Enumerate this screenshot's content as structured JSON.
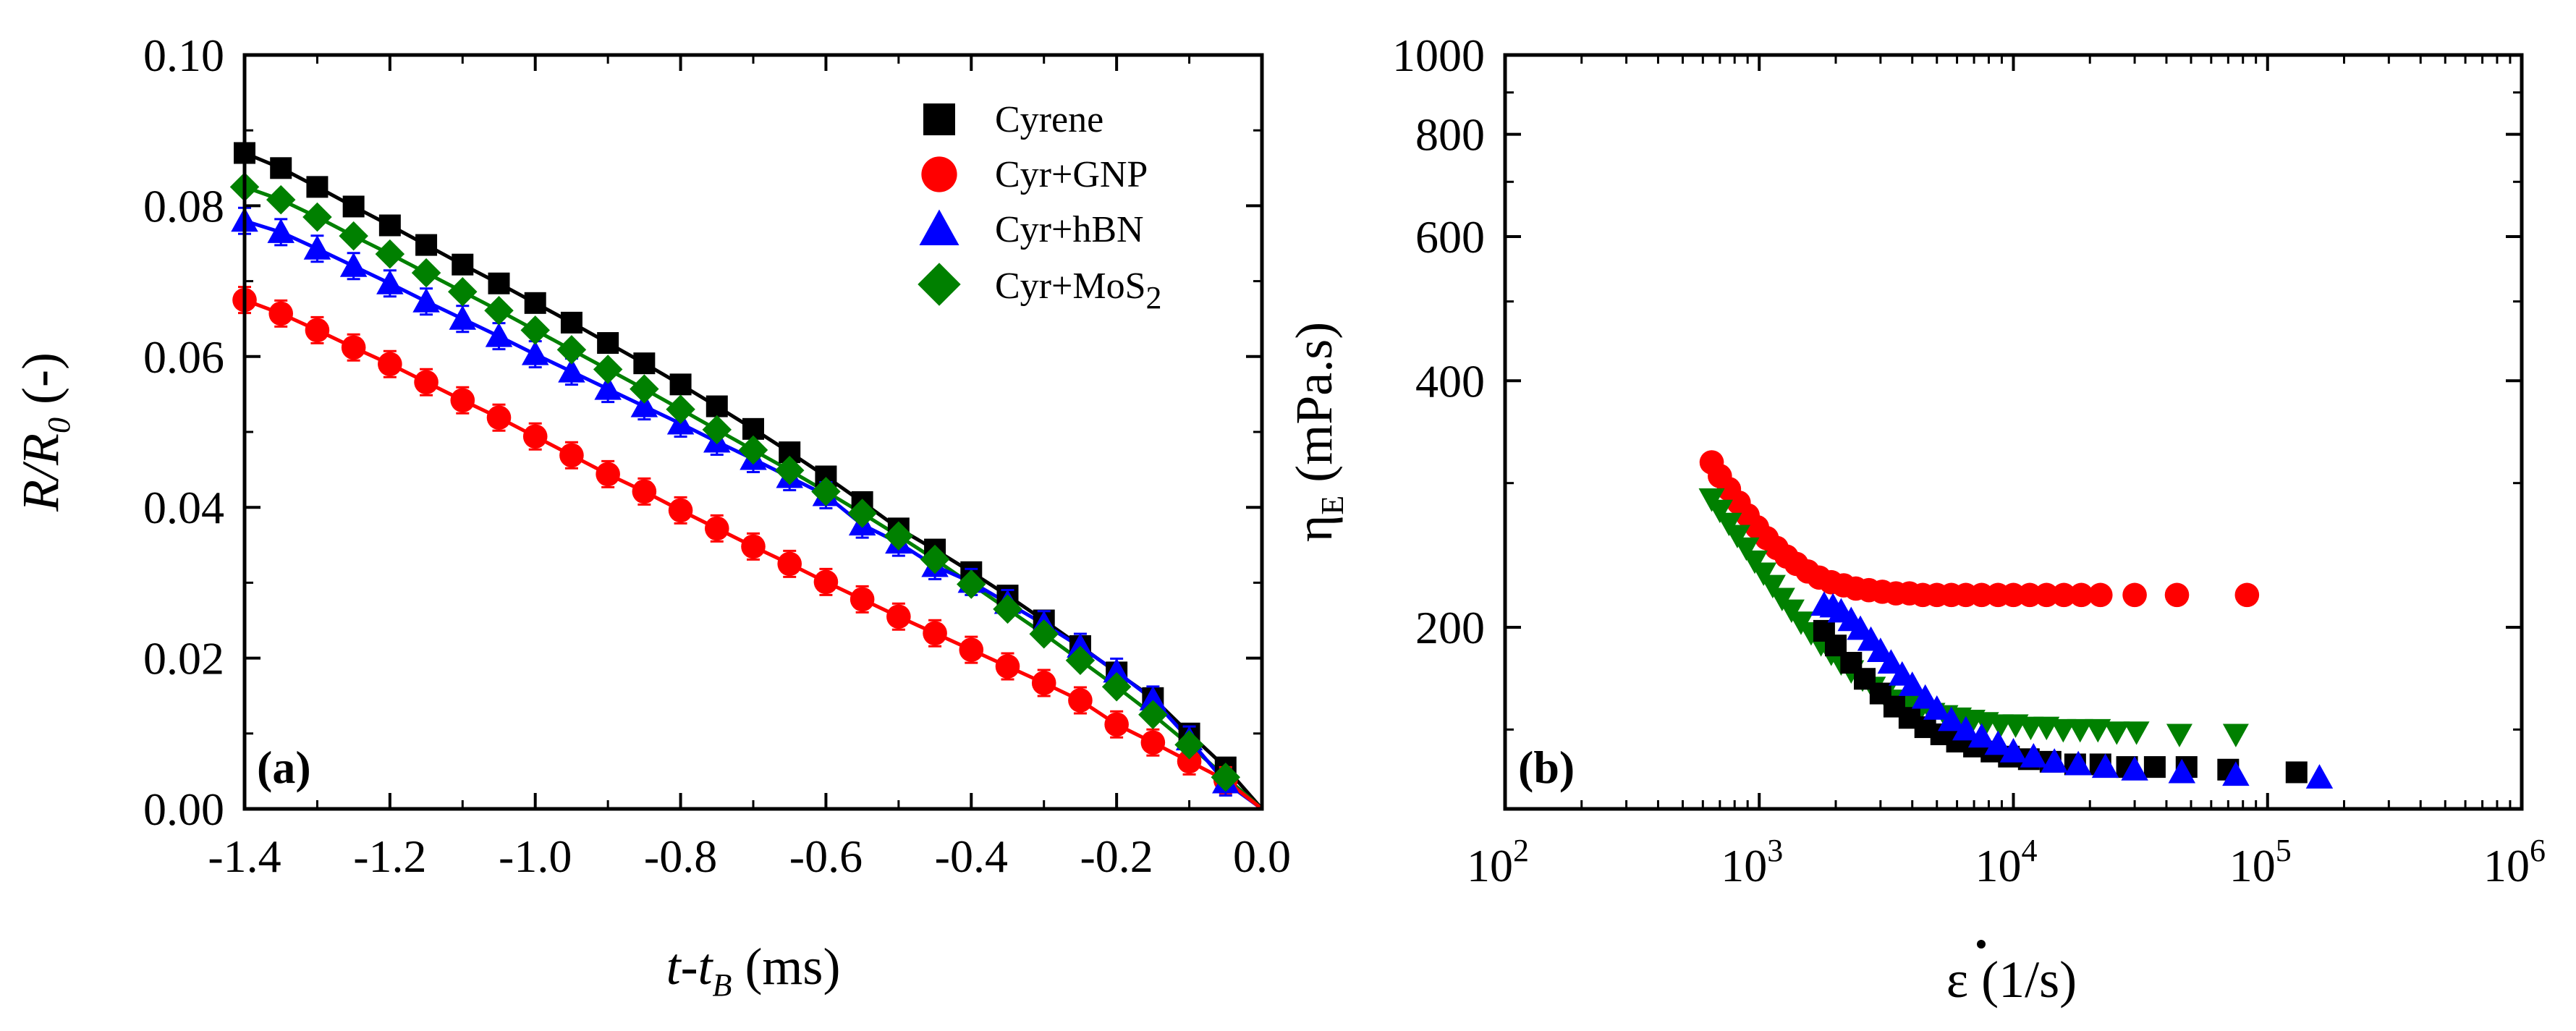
{
  "chart_data": [
    {
      "type": "scatter",
      "panel_label": "(a)",
      "xlabel": "t-tB (ms)",
      "xlabel_parts": {
        "main": "t-t",
        "sub": "B",
        "unit": " (ms)"
      },
      "ylabel": "R/R0 (-)",
      "ylabel_parts": {
        "main": "R/R",
        "sub": "0",
        "unit": " (-)"
      },
      "xlim": [
        -1.4,
        0.0
      ],
      "ylim": [
        0.0,
        0.1
      ],
      "x_ticks": [
        "-1.4",
        "-1.2",
        "-1.0",
        "-0.8",
        "-0.6",
        "-0.4",
        "-0.2",
        "0.0"
      ],
      "y_ticks": [
        "0.00",
        "0.02",
        "0.04",
        "0.06",
        "0.08",
        "0.10"
      ],
      "legend_position": "top-right",
      "series": [
        {
          "name": "Cyrene",
          "color": "#000000",
          "marker": "square",
          "x": [
            -1.4,
            -1.35,
            -1.3,
            -1.25,
            -1.2,
            -1.15,
            -1.1,
            -1.05,
            -1.0,
            -0.95,
            -0.9,
            -0.85,
            -0.8,
            -0.75,
            -0.7,
            -0.65,
            -0.6,
            -0.55,
            -0.5,
            -0.45,
            -0.4,
            -0.35,
            -0.3,
            -0.25,
            -0.2,
            -0.15,
            -0.1,
            -0.05
          ],
          "values": [
            0.087,
            0.085,
            0.0825,
            0.0799,
            0.0774,
            0.0748,
            0.0722,
            0.0697,
            0.0671,
            0.0645,
            0.0618,
            0.0591,
            0.0563,
            0.0534,
            0.0504,
            0.0473,
            0.0441,
            0.0407,
            0.0372,
            0.0344,
            0.0314,
            0.0283,
            0.025,
            0.0216,
            0.0181,
            0.0147,
            0.01,
            0.0055
          ]
        },
        {
          "name": "Cyr+GNP",
          "color": "#ff0000",
          "marker": "circle",
          "x": [
            -1.4,
            -1.35,
            -1.3,
            -1.25,
            -1.2,
            -1.15,
            -1.1,
            -1.05,
            -1.0,
            -0.95,
            -0.9,
            -0.85,
            -0.8,
            -0.75,
            -0.7,
            -0.65,
            -0.6,
            -0.55,
            -0.5,
            -0.45,
            -0.4,
            -0.35,
            -0.3,
            -0.25,
            -0.2,
            -0.15,
            -0.1,
            -0.05
          ],
          "values": [
            0.0675,
            0.0657,
            0.0635,
            0.0612,
            0.059,
            0.0566,
            0.0542,
            0.0519,
            0.0494,
            0.0469,
            0.0444,
            0.0421,
            0.0396,
            0.0372,
            0.0348,
            0.0325,
            0.0301,
            0.0278,
            0.0255,
            0.0233,
            0.0211,
            0.0189,
            0.0167,
            0.0144,
            0.0112,
            0.0088,
            0.0063,
            0.0038
          ]
        },
        {
          "name": "Cyr+hBN",
          "color": "#0000ff",
          "marker": "triangle",
          "x": [
            -1.4,
            -1.35,
            -1.3,
            -1.25,
            -1.2,
            -1.15,
            -1.1,
            -1.05,
            -1.0,
            -0.95,
            -0.9,
            -0.85,
            -0.8,
            -0.75,
            -0.7,
            -0.65,
            -0.6,
            -0.55,
            -0.5,
            -0.45,
            -0.4,
            -0.35,
            -0.3,
            -0.25,
            -0.2,
            -0.15,
            -0.1,
            -0.05
          ],
          "values": [
            0.078,
            0.0765,
            0.0743,
            0.072,
            0.0697,
            0.0673,
            0.065,
            0.0627,
            0.0603,
            0.058,
            0.0557,
            0.0534,
            0.0511,
            0.0487,
            0.0464,
            0.044,
            0.0416,
            0.0377,
            0.0353,
            0.0322,
            0.0301,
            0.0273,
            0.0245,
            0.0215,
            0.0182,
            0.0145,
            0.0092,
            0.0035
          ]
        },
        {
          "name": "Cyr+MoS2",
          "color": "#008000",
          "marker": "diamond",
          "x": [
            -1.4,
            -1.35,
            -1.3,
            -1.25,
            -1.2,
            -1.15,
            -1.1,
            -1.05,
            -1.0,
            -0.95,
            -0.9,
            -0.85,
            -0.8,
            -0.75,
            -0.7,
            -0.65,
            -0.6,
            -0.55,
            -0.5,
            -0.45,
            -0.4,
            -0.35,
            -0.3,
            -0.25,
            -0.2,
            -0.15,
            -0.1,
            -0.05
          ],
          "values": [
            0.0825,
            0.0808,
            0.0785,
            0.076,
            0.0736,
            0.0711,
            0.0686,
            0.0661,
            0.0635,
            0.0609,
            0.0583,
            0.0557,
            0.053,
            0.0503,
            0.0476,
            0.0449,
            0.0421,
            0.0392,
            0.0362,
            0.0331,
            0.0298,
            0.0265,
            0.0232,
            0.0197,
            0.0162,
            0.0125,
            0.0085,
            0.0042
          ]
        }
      ]
    },
    {
      "type": "scatter",
      "panel_label": "(b)",
      "xscale": "log",
      "yscale": "log",
      "xlabel": "ε̇ (1/s)",
      "xlabel_parts": {
        "main": "ε",
        "unit": " (1/s)"
      },
      "ylabel": "ηE (mPa.s)",
      "ylabel_parts": {
        "main": "η",
        "sub": "E",
        "unit": " (mPa.s)"
      },
      "xlim": [
        100,
        1000000
      ],
      "ylim": [
        120,
        1000
      ],
      "x_tick_values": [
        100,
        1000,
        10000,
        100000,
        1000000
      ],
      "x_ticks": [
        {
          "base": "10",
          "exp": "2"
        },
        {
          "base": "10",
          "exp": "3"
        },
        {
          "base": "10",
          "exp": "4"
        },
        {
          "base": "10",
          "exp": "5"
        },
        {
          "base": "10",
          "exp": "6"
        }
      ],
      "y_tick_values": [
        200,
        400,
        600,
        800,
        1000
      ],
      "y_ticks": [
        "200",
        "400",
        "600",
        "800",
        "1000"
      ],
      "series": [
        {
          "name": "Cyrene",
          "color": "#000000",
          "marker": "square",
          "x": [
            1800,
            2000,
            2300,
            2600,
            3000,
            3400,
            3900,
            4500,
            5200,
            6000,
            7000,
            8200,
            9600,
            11500,
            14000,
            17500,
            22000,
            28000,
            36000,
            48000,
            70000,
            130000
          ],
          "values": [
            198,
            190,
            181,
            173,
            166,
            160,
            155,
            151,
            148,
            145,
            143,
            141,
            139,
            138,
            137,
            136,
            136,
            135,
            135,
            135,
            134,
            133
          ]
        },
        {
          "name": "Cyr+GNP",
          "color": "#ff0000",
          "marker": "circle",
          "x": [
            650,
            700,
            760,
            830,
            900,
            980,
            1070,
            1170,
            1280,
            1400,
            1550,
            1720,
            1920,
            2150,
            2400,
            2700,
            3050,
            3450,
            3900,
            4400,
            5000,
            5700,
            6500,
            7500,
            8700,
            10000,
            11600,
            13500,
            15800,
            18500,
            22000,
            30000,
            44000,
            83000
          ],
          "values": [
            318,
            306,
            295,
            284,
            274,
            265,
            257,
            250,
            244,
            239,
            234,
            230,
            227,
            225,
            223,
            222,
            221,
            220,
            220,
            219,
            219,
            219,
            219,
            219,
            219,
            219,
            219,
            219,
            219,
            219,
            219,
            219,
            219,
            219
          ]
        },
        {
          "name": "Cyr+hBN",
          "color": "#0000ff",
          "marker": "triangle",
          "x": [
            1800,
            1950,
            2100,
            2300,
            2500,
            2750,
            3000,
            3300,
            3650,
            4000,
            4500,
            5000,
            5700,
            6500,
            7500,
            8700,
            10000,
            12000,
            14500,
            18000,
            23000,
            30000,
            46000,
            75000,
            160000
          ],
          "values": [
            213,
            212,
            209,
            204,
            199,
            193,
            187,
            181,
            175,
            170,
            164,
            159,
            154,
            150,
            147,
            144,
            141,
            139,
            137,
            136,
            135,
            134,
            133,
            132,
            131
          ]
        },
        {
          "name": "Cyr+MoS2",
          "color": "#008000",
          "marker": "triangle-down",
          "x": [
            650,
            700,
            760,
            820,
            890,
            960,
            1040,
            1130,
            1230,
            1340,
            1460,
            1600,
            1750,
            1920,
            2100,
            2300,
            2550,
            2800,
            3100,
            3450,
            3850,
            4300,
            4800,
            5400,
            6100,
            6900,
            7800,
            8900,
            10200,
            11700,
            13500,
            15700,
            18300,
            21500,
            25500,
            30500,
            45000,
            75000
          ],
          "values": [
            287,
            278,
            268,
            259,
            250,
            241,
            233,
            225,
            217,
            210,
            203,
            197,
            191,
            186,
            181,
            177,
            173,
            169,
            166,
            163,
            161,
            159,
            157,
            156,
            155,
            154,
            153,
            152,
            152,
            151,
            151,
            150,
            150,
            150,
            149,
            149,
            148,
            148
          ]
        }
      ]
    }
  ]
}
